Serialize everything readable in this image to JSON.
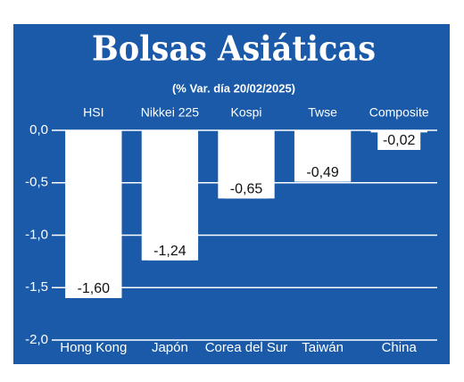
{
  "chart_data": {
    "type": "bar",
    "title": "Bolsas Asiáticas",
    "subtitle": "(% Var. día 20/02/2025)",
    "categories": [
      "Hong Kong",
      "Japón",
      "Corea del Sur",
      "Taiwán",
      "China"
    ],
    "index_names": [
      "HSI",
      "Nikkei 225",
      "Kospi",
      "Twse",
      "Composite"
    ],
    "values": [
      -1.6,
      -1.24,
      -0.65,
      -0.49,
      -0.02
    ],
    "value_labels": [
      "-1,60",
      "-1,24",
      "-0,65",
      "-0,49",
      "-0,02"
    ],
    "color": "#ffffff",
    "background": "#1b5aa8",
    "ylim": [
      -2,
      0
    ],
    "yticks": [
      {
        "value": 0,
        "label": "0,0"
      },
      {
        "value": -0.5,
        "label": "-0,5"
      },
      {
        "value": -1,
        "label": "-1,0"
      },
      {
        "value": -1.5,
        "label": "-1,5"
      },
      {
        "value": -2,
        "label": "-2,0"
      }
    ],
    "grid": true
  }
}
